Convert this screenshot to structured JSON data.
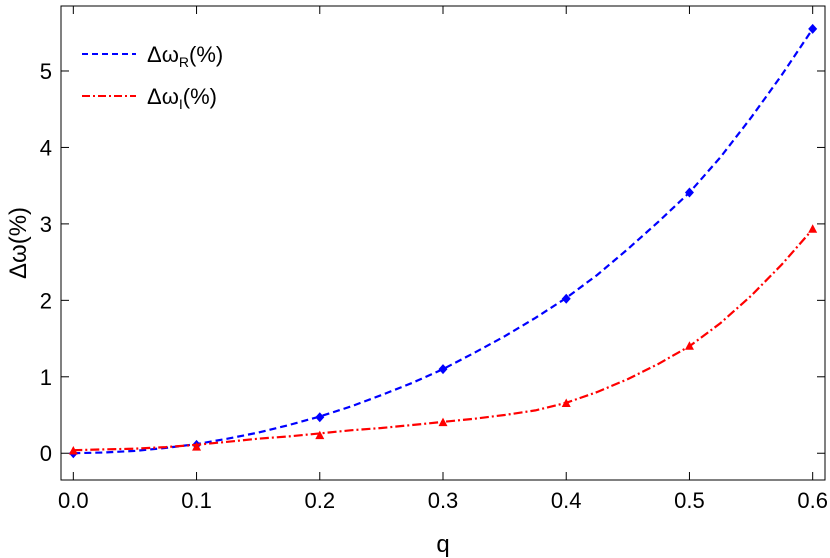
{
  "chart_data": {
    "type": "line",
    "title": "",
    "xlabel": "q",
    "ylabel": "Δω(%)",
    "xlim": [
      -0.01,
      0.61
    ],
    "ylim": [
      -0.35,
      5.85
    ],
    "xticks": [
      0.0,
      0.1,
      0.2,
      0.3,
      0.4,
      0.5,
      0.6
    ],
    "xtick_labels": [
      "0.0",
      "0.1",
      "0.2",
      "0.3",
      "0.4",
      "0.5",
      "0.6"
    ],
    "yticks": [
      0,
      1,
      2,
      3,
      4,
      5
    ],
    "ytick_labels": [
      "0",
      "1",
      "2",
      "3",
      "4",
      "5"
    ],
    "grid": false,
    "legend_position": "top-left",
    "series": [
      {
        "name_main": "Δω",
        "name_sub": "R",
        "name_tail": "(%)",
        "color": "#0000ff",
        "line_style": "dashed",
        "marker": "diamond",
        "x": [
          0.0,
          0.1,
          0.2,
          0.3,
          0.4,
          0.5,
          0.6
        ],
        "y": [
          0.0,
          0.11,
          0.47,
          1.1,
          2.02,
          3.41,
          5.55
        ],
        "curve_x": [
          0.0,
          0.025,
          0.05,
          0.075,
          0.1,
          0.125,
          0.15,
          0.175,
          0.2,
          0.225,
          0.25,
          0.275,
          0.3,
          0.325,
          0.35,
          0.375,
          0.4,
          0.425,
          0.45,
          0.475,
          0.5,
          0.525,
          0.55,
          0.575,
          0.6
        ],
        "curve_y": [
          0.0,
          0.01,
          0.03,
          0.07,
          0.12,
          0.19,
          0.27,
          0.37,
          0.48,
          0.61,
          0.76,
          0.92,
          1.1,
          1.31,
          1.53,
          1.77,
          2.03,
          2.33,
          2.67,
          3.03,
          3.41,
          3.87,
          4.39,
          4.95,
          5.55
        ]
      },
      {
        "name_main": "Δω",
        "name_sub": "I",
        "name_tail": "(%)",
        "color": "#ff0000",
        "line_style": "dashdot",
        "marker": "triangle",
        "x": [
          0.0,
          0.1,
          0.2,
          0.3,
          0.4,
          0.5,
          0.6
        ],
        "y": [
          0.03,
          0.08,
          0.23,
          0.4,
          0.65,
          1.4,
          2.93
        ],
        "curve_x": [
          0.0,
          0.025,
          0.05,
          0.075,
          0.1,
          0.125,
          0.15,
          0.175,
          0.2,
          0.225,
          0.25,
          0.275,
          0.3,
          0.325,
          0.35,
          0.375,
          0.4,
          0.425,
          0.45,
          0.475,
          0.5,
          0.525,
          0.55,
          0.575,
          0.6
        ],
        "curve_y": [
          0.04,
          0.05,
          0.06,
          0.08,
          0.11,
          0.15,
          0.19,
          0.22,
          0.26,
          0.3,
          0.33,
          0.37,
          0.41,
          0.45,
          0.5,
          0.56,
          0.66,
          0.8,
          0.97,
          1.17,
          1.4,
          1.7,
          2.06,
          2.47,
          2.93
        ]
      }
    ]
  }
}
